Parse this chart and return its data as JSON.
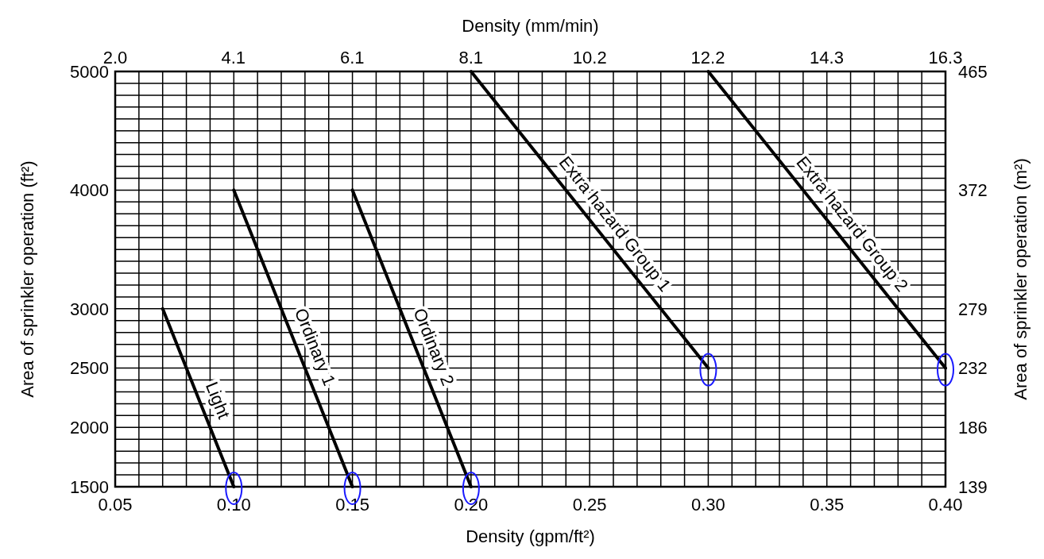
{
  "chart_data": {
    "type": "line",
    "xlabel": "Density (gpm/ft²)",
    "x2label": "Density (mm/min)",
    "ylabel": "Area of sprinkler operation (ft²)",
    "y2label": "Area of sprinkler operation (m²)",
    "grid": true,
    "xlim": [
      0.05,
      0.4
    ],
    "xticks": [
      {
        "value": 0.05,
        "label": "0.05"
      },
      {
        "value": 0.06,
        "label": null
      },
      {
        "value": 0.07,
        "label": null
      },
      {
        "value": 0.08,
        "label": null
      },
      {
        "value": 0.09,
        "label": null
      },
      {
        "value": 0.1,
        "label": "0.10"
      },
      {
        "value": 0.11,
        "label": null
      },
      {
        "value": 0.12,
        "label": null
      },
      {
        "value": 0.13,
        "label": null
      },
      {
        "value": 0.14,
        "label": null
      },
      {
        "value": 0.15,
        "label": "0.15"
      },
      {
        "value": 0.16,
        "label": null
      },
      {
        "value": 0.17,
        "label": null
      },
      {
        "value": 0.18,
        "label": null
      },
      {
        "value": 0.19,
        "label": null
      },
      {
        "value": 0.2,
        "label": "0.20"
      },
      {
        "value": 0.21,
        "label": null
      },
      {
        "value": 0.22,
        "label": null
      },
      {
        "value": 0.23,
        "label": null
      },
      {
        "value": 0.24,
        "label": null
      },
      {
        "value": 0.25,
        "label": "0.25"
      },
      {
        "value": 0.26,
        "label": null
      },
      {
        "value": 0.27,
        "label": null
      },
      {
        "value": 0.28,
        "label": null
      },
      {
        "value": 0.29,
        "label": null
      },
      {
        "value": 0.3,
        "label": "0.30"
      },
      {
        "value": 0.31,
        "label": null
      },
      {
        "value": 0.32,
        "label": null
      },
      {
        "value": 0.33,
        "label": null
      },
      {
        "value": 0.34,
        "label": null
      },
      {
        "value": 0.35,
        "label": "0.35"
      },
      {
        "value": 0.36,
        "label": null
      },
      {
        "value": 0.37,
        "label": null
      },
      {
        "value": 0.38,
        "label": null
      },
      {
        "value": 0.39,
        "label": null
      },
      {
        "value": 0.4,
        "label": "0.40"
      }
    ],
    "x2lim": [
      2.04,
      16.3
    ],
    "x2ticks": [
      {
        "value": 2.04,
        "label": "2.0"
      },
      {
        "value": 4.07,
        "label": "4.1"
      },
      {
        "value": 6.11,
        "label": "6.1"
      },
      {
        "value": 8.15,
        "label": "8.1"
      },
      {
        "value": 10.19,
        "label": "10.2"
      },
      {
        "value": 12.22,
        "label": "12.2"
      },
      {
        "value": 14.26,
        "label": "14.3"
      },
      {
        "value": 16.3,
        "label": "16.3"
      }
    ],
    "ylim": [
      1500,
      5000
    ],
    "yticks": [
      1500,
      {
        "value": 1600,
        "label": null
      },
      {
        "value": 1700,
        "label": null
      },
      {
        "value": 1800,
        "label": null
      },
      {
        "value": 1900,
        "label": null
      },
      2000,
      {
        "value": 2100,
        "label": null
      },
      {
        "value": 2200,
        "label": null
      },
      {
        "value": 2300,
        "label": null
      },
      {
        "value": 2400,
        "label": null
      },
      2500,
      {
        "value": 2600,
        "label": null
      },
      {
        "value": 2700,
        "label": null
      },
      {
        "value": 2800,
        "label": null
      },
      {
        "value": 2900,
        "label": null
      },
      3000,
      {
        "value": 3100,
        "label": null
      },
      {
        "value": 3200,
        "label": null
      },
      {
        "value": 3300,
        "label": null
      },
      {
        "value": 3400,
        "label": null
      },
      {
        "value": 3500,
        "label": null
      },
      {
        "value": 3600,
        "label": null
      },
      {
        "value": 3700,
        "label": null
      },
      {
        "value": 3800,
        "label": null
      },
      {
        "value": 3900,
        "label": null
      },
      4000,
      {
        "value": 4100,
        "label": null
      },
      {
        "value": 4200,
        "label": null
      },
      {
        "value": 4300,
        "label": null
      },
      {
        "value": 4400,
        "label": null
      },
      {
        "value": 4500,
        "label": null
      },
      {
        "value": 4600,
        "label": null
      },
      {
        "value": 4700,
        "label": null
      },
      {
        "value": 4800,
        "label": null
      },
      {
        "value": 4900,
        "label": null
      },
      5000
    ],
    "y2lim": [
      139.35,
      464.5
    ],
    "y2ticks": [
      {
        "value": 139.35,
        "label": "139"
      },
      {
        "value": 185.8,
        "label": "186"
      },
      {
        "value": 232.26,
        "label": "232"
      },
      {
        "value": 278.7,
        "label": "279"
      },
      {
        "value": 371.6,
        "label": "372"
      },
      {
        "value": 464.5,
        "label": "465"
      }
    ],
    "series": [
      {
        "name": "Light",
        "color": "#000000",
        "x": [
          0.07,
          0.1
        ],
        "values": [
          3000,
          1500
        ]
      },
      {
        "name": "Ordinary 1",
        "color": "#000000",
        "x": [
          0.1,
          0.15
        ],
        "values": [
          4000,
          1500
        ]
      },
      {
        "name": "Ordinary 2",
        "color": "#000000",
        "x": [
          0.15,
          0.2
        ],
        "values": [
          4000,
          1500
        ]
      },
      {
        "name": "Extra hazard Group 1",
        "color": "#000000",
        "x": [
          0.2,
          0.3
        ],
        "values": [
          5000,
          2500
        ]
      },
      {
        "name": "Extra hazard Group 2",
        "color": "#000000",
        "x": [
          0.3,
          0.4
        ],
        "values": [
          5000,
          2500
        ]
      }
    ]
  }
}
